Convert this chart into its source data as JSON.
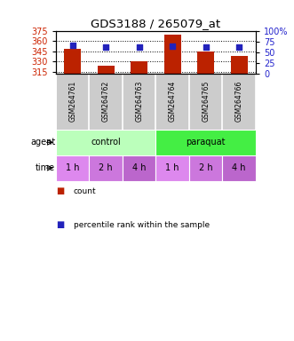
{
  "title": "GDS3188 / 265079_at",
  "categories": [
    "GSM264761",
    "GSM264762",
    "GSM264763",
    "GSM264764",
    "GSM264765",
    "GSM264766"
  ],
  "bar_values": [
    348.0,
    323.5,
    330.0,
    369.5,
    344.5,
    338.5
  ],
  "percentile_values": [
    65,
    62,
    61,
    64,
    62,
    62
  ],
  "ylim_left": [
    313,
    375
  ],
  "ylim_right": [
    0,
    100
  ],
  "yticks_left": [
    315,
    330,
    345,
    360,
    375
  ],
  "yticks_right": [
    0,
    25,
    50,
    75,
    100
  ],
  "bar_color": "#bb2200",
  "dot_color": "#2222bb",
  "bar_width": 0.5,
  "agent_labels": [
    "control",
    "paraquat"
  ],
  "agent_colors": [
    "#bbffbb",
    "#44ee44"
  ],
  "time_labels": [
    "1 h",
    "2 h",
    "4 h",
    "1 h",
    "2 h",
    "4 h"
  ],
  "time_colors": [
    "#dd88dd",
    "#ee99ee",
    "#cc66cc",
    "#dd88dd",
    "#ee99ee",
    "#cc66cc"
  ],
  "gsm_bg_color": "#cccccc",
  "legend_count_color": "#bb2200",
  "legend_dot_color": "#2222bb",
  "title_fontsize": 9.5,
  "tick_fontsize": 7,
  "axis_label_color_left": "#cc2200",
  "axis_label_color_right": "#2222cc"
}
